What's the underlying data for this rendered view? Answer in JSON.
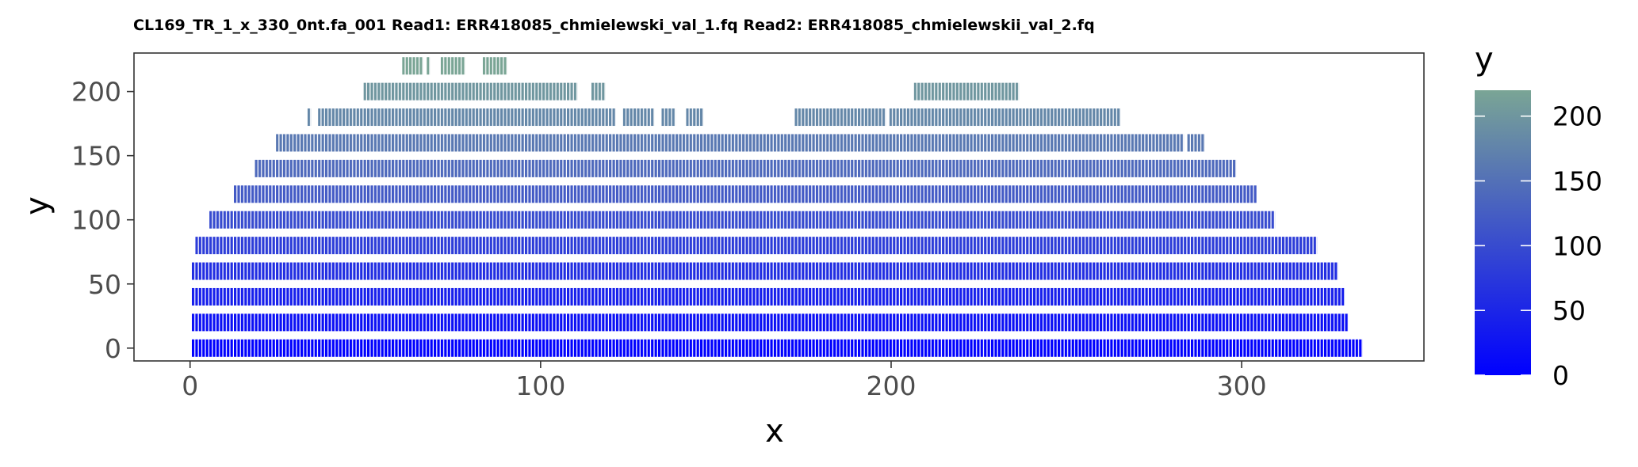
{
  "chart_data": {
    "type": "scatter",
    "title": "CL169_TR_1_x_330_0nt.fa_001 Read1: ERR418085_chmielewski_val_1.fq Read2: ERR418085_chmielewskii_val_2.fq",
    "xlabel": "x",
    "ylabel": "y",
    "xlim": [
      -16,
      352
    ],
    "ylim": [
      -10,
      230
    ],
    "x_ticks": [
      0,
      100,
      200,
      300
    ],
    "x_tick_labels": [
      "0",
      "100",
      "200",
      "300"
    ],
    "y_ticks": [
      0,
      50,
      100,
      150,
      200
    ],
    "y_tick_labels": [
      "0",
      "50",
      "100",
      "150",
      "200"
    ],
    "grid": false,
    "legend": {
      "title": "y",
      "position": "right",
      "range": [
        0,
        220
      ],
      "ticks": [
        0,
        50,
        100,
        150,
        200
      ],
      "tick_labels": [
        "0",
        "50",
        "100",
        "150",
        "200"
      ],
      "color_low": "#0000ff",
      "color_high": "#7aa595"
    },
    "marker": "vertical tick marks, one per integer x position",
    "rows": [
      {
        "y": 0,
        "segments": [
          [
            1,
            334
          ]
        ]
      },
      {
        "y": 20,
        "segments": [
          [
            1,
            330
          ]
        ]
      },
      {
        "y": 40,
        "segments": [
          [
            1,
            329
          ]
        ]
      },
      {
        "y": 60,
        "segments": [
          [
            1,
            327
          ]
        ]
      },
      {
        "y": 80,
        "segments": [
          [
            2,
            321
          ]
        ]
      },
      {
        "y": 100,
        "segments": [
          [
            6,
            309
          ]
        ]
      },
      {
        "y": 120,
        "segments": [
          [
            13,
            304
          ]
        ]
      },
      {
        "y": 140,
        "segments": [
          [
            19,
            298
          ]
        ]
      },
      {
        "y": 160,
        "segments": [
          [
            25,
            283
          ],
          [
            285,
            289
          ]
        ]
      },
      {
        "y": 180,
        "segments": [
          [
            34,
            34
          ],
          [
            37,
            121
          ],
          [
            124,
            132
          ],
          [
            135,
            138
          ],
          [
            142,
            146
          ],
          [
            173,
            198
          ],
          [
            200,
            265
          ]
        ]
      },
      {
        "y": 200,
        "segments": [
          [
            50,
            110
          ],
          [
            115,
            118
          ],
          [
            207,
            236
          ]
        ]
      },
      {
        "y": 220,
        "segments": [
          [
            61,
            66
          ],
          [
            68,
            68
          ],
          [
            72,
            78
          ],
          [
            84,
            90
          ]
        ]
      }
    ]
  }
}
